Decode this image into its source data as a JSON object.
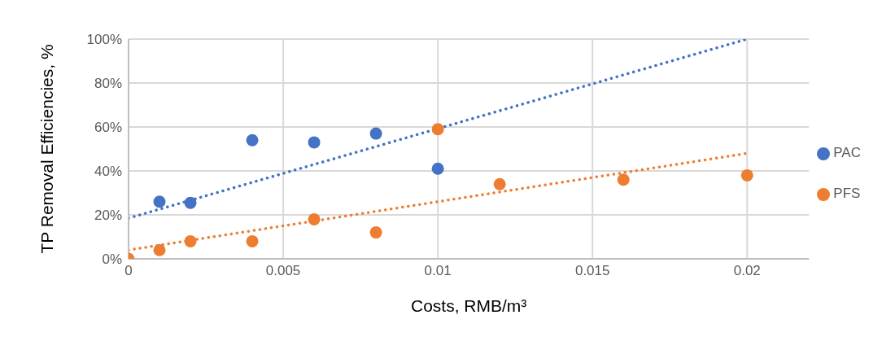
{
  "chart_data": {
    "type": "scatter",
    "xlabel": "Costs, RMB/m³",
    "ylabel": "TP Removal Efficiencies, %",
    "xlim": [
      0,
      0.022
    ],
    "xticks": [
      0,
      0.005,
      0.01,
      0.015,
      0.02
    ],
    "ylim": [
      0,
      100
    ],
    "yticks": [
      {
        "value": 0,
        "label": "0%"
      },
      {
        "value": 20,
        "label": "20%"
      },
      {
        "value": 40,
        "label": "40%"
      },
      {
        "value": 60,
        "label": "60%"
      },
      {
        "value": 80,
        "label": "80%"
      },
      {
        "value": 100,
        "label": "100%"
      }
    ],
    "grid": true,
    "legend": "right",
    "marker": "circle",
    "series": [
      {
        "name": "PAC",
        "color": "#4472c4",
        "x": [
          0.001,
          0.002,
          0.004,
          0.006,
          0.008,
          0.01
        ],
        "values": [
          26,
          25.5,
          54,
          53,
          57,
          41
        ]
      },
      {
        "name": "PFS",
        "color": "#ed7d31",
        "x": [
          0,
          0.001,
          0.002,
          0.004,
          0.006,
          0.008,
          0.01,
          0.012,
          0.016,
          0.02
        ],
        "values": [
          0,
          4,
          8,
          8,
          18,
          12,
          59,
          34,
          36,
          38
        ]
      },
      {
        "type": "line",
        "color": "#4472c4",
        "line_style": "dotted",
        "marker": "none",
        "x": [
          0,
          0.02
        ],
        "values": [
          18.5,
          100
        ]
      },
      {
        "type": "line",
        "color": "#ed7d31",
        "line_style": "dotted",
        "marker": "none",
        "x": [
          0,
          0.02
        ],
        "values": [
          4,
          48
        ]
      }
    ]
  }
}
